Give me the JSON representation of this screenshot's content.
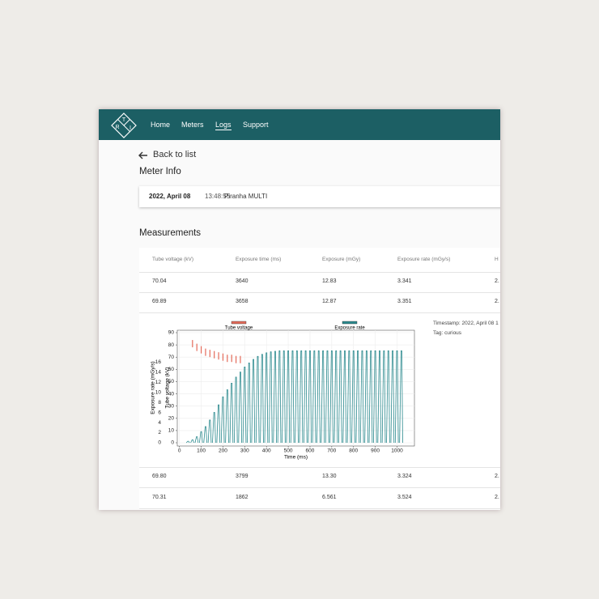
{
  "logo": [
    "R",
    "T",
    "I"
  ],
  "nav": {
    "links": [
      "Home",
      "Meters",
      "Logs",
      "Support"
    ],
    "active_link": 2
  },
  "back": "Back to list",
  "meter_info": {
    "title": "Meter Info",
    "date": "2022, April 08",
    "time": "13:48:55",
    "meter": "Piranha MULTI"
  },
  "measurements": {
    "title": "Measurements",
    "columns": [
      "Tube voltage (kV)",
      "Exposure time (ms)",
      "Exposure (mGy)",
      "Exposure rate (mGy/s)",
      "H"
    ],
    "rows": [
      [
        "70.04",
        "3640",
        "12.83",
        "3.341",
        "2."
      ],
      [
        "69.89",
        "3658",
        "12.87",
        "3.351",
        "2."
      ],
      [
        "69.80",
        "3799",
        "13.30",
        "3.324",
        "2."
      ],
      [
        "70.31",
        "1862",
        "6.561",
        "3.524",
        "2."
      ]
    ],
    "expanded_after_row": 1
  },
  "details": {
    "timestamp": "Timestamp: 2022, April 08 1",
    "tag": "Tag: curious"
  },
  "chart_data": {
    "type": "pulse",
    "x_label": "Time (ms)",
    "y_label": "Tube voltage (kV)",
    "y2_label": "Exposure rate (mGy/s)",
    "xlim": [
      -10,
      1080
    ],
    "xticks": [
      0,
      100,
      200,
      300,
      400,
      500,
      600,
      700,
      800,
      900,
      1000
    ],
    "ylim": [
      0,
      90
    ],
    "yticks": [
      0,
      10,
      20,
      30,
      40,
      50,
      60,
      70,
      80,
      90
    ],
    "y2lim": [
      0,
      21.8
    ],
    "y2ticks": [
      0,
      2,
      4,
      6,
      8,
      10,
      12,
      14,
      16
    ],
    "grid": true,
    "series": [
      {
        "name": "Tube voltage",
        "color": "#e46b5a",
        "axis": "y",
        "x": [
          60,
          80,
          100,
          120,
          140,
          160,
          180,
          200,
          220,
          240,
          260,
          280
        ],
        "values": [
          84,
          81,
          79,
          77,
          76,
          75,
          74,
          73,
          72,
          72,
          71,
          71
        ]
      },
      {
        "name": "Exposure rate",
        "color": "#2b8a8e",
        "axis": "y2",
        "x": [
          40,
          60,
          80,
          100,
          120,
          140,
          160,
          180,
          200,
          220,
          240,
          260,
          280,
          300,
          320,
          340,
          360,
          380,
          400,
          420,
          440,
          460,
          480,
          500,
          520,
          540,
          560,
          580,
          600,
          620,
          640,
          660,
          680,
          700,
          720,
          740,
          760,
          780,
          800,
          820,
          840,
          860,
          880,
          900,
          920,
          940,
          960,
          980,
          1000,
          1020
        ],
        "values": [
          0.3,
          0.6,
          1.2,
          2.2,
          3.2,
          4.5,
          6,
          7.5,
          9.1,
          10.5,
          11.8,
          13,
          14,
          15,
          15.8,
          16.5,
          17.1,
          17.5,
          17.8,
          18,
          18.1,
          18.2,
          18.2,
          18.2,
          18.2,
          18.2,
          18.2,
          18.2,
          18.2,
          18.2,
          18.2,
          18.2,
          18.2,
          18.2,
          18.2,
          18.2,
          18.2,
          18.2,
          18.2,
          18.2,
          18.2,
          18.2,
          18.2,
          18.2,
          18.2,
          18.2,
          18.2,
          18.2,
          18.2,
          18.2
        ]
      }
    ]
  }
}
